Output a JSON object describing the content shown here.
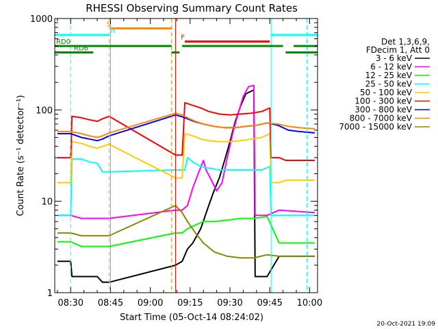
{
  "chart_data": {
    "type": "line",
    "title": "RHESSI Observing Summary Count Rates",
    "xlabel": "Start Time (05-Oct-14 08:24:02)",
    "ylabel": "Count Rate (s⁻¹ detector⁻¹)",
    "x_unit": "minutes since 08:24:02 UTC",
    "xlim": [
      0,
      99
    ],
    "ylim": [
      1,
      1000
    ],
    "yscale": "log",
    "x_ticks": [
      {
        "x": 6,
        "label": "08:30"
      },
      {
        "x": 21,
        "label": "08:45"
      },
      {
        "x": 36,
        "label": "09:00"
      },
      {
        "x": 51,
        "label": "09:15"
      },
      {
        "x": 66,
        "label": "09:30"
      },
      {
        "x": 81,
        "label": "09:45"
      },
      {
        "x": 96,
        "label": "10:00"
      }
    ],
    "y_ticks": [
      {
        "y": 1,
        "label": "1"
      },
      {
        "y": 10,
        "label": "10"
      },
      {
        "y": 100,
        "label": "100"
      },
      {
        "y": 1000,
        "label": "1000"
      }
    ],
    "legend_header": [
      "Det 1,3,6,9,",
      "FDecim 1, Att 0"
    ],
    "legend_position": "right",
    "footer": "20-Oct-2021 19:09",
    "gaps": [
      [
        21,
        45
      ],
      [
        81,
        84
      ]
    ],
    "series": [
      {
        "name": "3 - 6 keV",
        "color": "#000000",
        "points": [
          [
            1,
            2.2
          ],
          [
            6,
            2.2
          ],
          [
            6.5,
            1.5
          ],
          [
            10,
            1.5
          ],
          [
            16,
            1.5
          ],
          [
            18,
            1.3
          ],
          [
            20.5,
            1.3
          ],
          [
            45.5,
            2.0
          ],
          [
            48,
            2.2
          ],
          [
            50,
            3.0
          ],
          [
            52,
            3.5
          ],
          [
            55,
            5.0
          ],
          [
            58,
            9
          ],
          [
            60,
            13
          ],
          [
            62,
            18
          ],
          [
            64,
            28
          ],
          [
            66,
            45
          ],
          [
            68,
            75
          ],
          [
            70,
            110
          ],
          [
            72,
            150
          ],
          [
            74,
            160
          ],
          [
            75,
            165
          ],
          [
            75.5,
            1.5
          ],
          [
            80,
            1.5
          ],
          [
            84.5,
            2.5
          ],
          [
            87,
            2.5
          ],
          [
            98,
            2.5
          ]
        ]
      },
      {
        "name": "6 - 12 keV",
        "color": "#ff00ff",
        "points": [
          [
            1,
            7
          ],
          [
            6,
            7
          ],
          [
            10,
            6.5
          ],
          [
            16,
            6.5
          ],
          [
            20.5,
            6.5
          ],
          [
            45.5,
            8
          ],
          [
            48,
            8
          ],
          [
            50,
            9
          ],
          [
            52,
            14
          ],
          [
            54,
            20
          ],
          [
            56,
            28
          ],
          [
            57,
            22
          ],
          [
            59,
            17
          ],
          [
            61,
            13
          ],
          [
            63,
            16
          ],
          [
            65,
            30
          ],
          [
            67,
            55
          ],
          [
            69,
            90
          ],
          [
            71,
            140
          ],
          [
            73,
            180
          ],
          [
            75,
            185
          ],
          [
            75.5,
            7
          ],
          [
            80,
            7
          ],
          [
            84.5,
            8
          ],
          [
            98,
            7.5
          ]
        ]
      },
      {
        "name": "12 - 25 keV",
        "color": "#00ff00",
        "points": [
          [
            1,
            3.6
          ],
          [
            6,
            3.6
          ],
          [
            10,
            3.2
          ],
          [
            16,
            3.2
          ],
          [
            20.5,
            3.2
          ],
          [
            45.5,
            4.5
          ],
          [
            48,
            4.5
          ],
          [
            50,
            5
          ],
          [
            53,
            5.5
          ],
          [
            56,
            6
          ],
          [
            60,
            6
          ],
          [
            65,
            6.2
          ],
          [
            70,
            6.5
          ],
          [
            75,
            6.5
          ],
          [
            80,
            6.8
          ],
          [
            84.5,
            3.5
          ],
          [
            87,
            3.5
          ],
          [
            98,
            3.5
          ]
        ]
      },
      {
        "name": "25 - 50 keV",
        "color": "#00ffff",
        "points": [
          [
            1,
            7
          ],
          [
            6,
            7
          ],
          [
            6.5,
            29
          ],
          [
            10,
            29
          ],
          [
            13,
            27
          ],
          [
            16,
            26
          ],
          [
            18,
            21
          ],
          [
            20.5,
            21
          ],
          [
            45.5,
            22
          ],
          [
            48,
            22
          ],
          [
            49,
            22
          ],
          [
            50,
            30
          ],
          [
            52,
            27
          ],
          [
            55,
            24
          ],
          [
            58,
            23
          ],
          [
            62,
            22
          ],
          [
            66,
            22
          ],
          [
            70,
            22
          ],
          [
            74,
            22
          ],
          [
            78,
            22
          ],
          [
            81,
            24
          ],
          [
            81.5,
            7
          ],
          [
            84.5,
            7
          ],
          [
            87,
            7
          ],
          [
            98,
            7
          ]
        ]
      },
      {
        "name": "50 - 100 keV",
        "color": "#ffcc00",
        "points": [
          [
            1,
            16
          ],
          [
            6,
            16
          ],
          [
            6.5,
            45
          ],
          [
            10,
            43
          ],
          [
            13,
            40
          ],
          [
            16,
            38
          ],
          [
            18,
            40
          ],
          [
            20.5,
            42
          ],
          [
            45.5,
            18
          ],
          [
            48,
            18
          ],
          [
            49,
            55
          ],
          [
            52,
            52
          ],
          [
            55,
            48
          ],
          [
            58,
            46
          ],
          [
            62,
            45
          ],
          [
            66,
            45
          ],
          [
            70,
            46
          ],
          [
            74,
            48
          ],
          [
            78,
            50
          ],
          [
            81,
            55
          ],
          [
            81.5,
            16
          ],
          [
            84.5,
            16
          ],
          [
            87,
            17
          ],
          [
            98,
            17
          ]
        ]
      },
      {
        "name": "100 - 300 keV",
        "color": "#ff0000",
        "points": [
          [
            1,
            30
          ],
          [
            6,
            30
          ],
          [
            6.5,
            85
          ],
          [
            10,
            82
          ],
          [
            13,
            78
          ],
          [
            16,
            75
          ],
          [
            18,
            80
          ],
          [
            20.5,
            85
          ],
          [
            45.5,
            32
          ],
          [
            48,
            32
          ],
          [
            49,
            120
          ],
          [
            52,
            112
          ],
          [
            55,
            105
          ],
          [
            58,
            96
          ],
          [
            62,
            90
          ],
          [
            66,
            88
          ],
          [
            70,
            90
          ],
          [
            74,
            92
          ],
          [
            78,
            96
          ],
          [
            81,
            105
          ],
          [
            81.5,
            30
          ],
          [
            84.5,
            30
          ],
          [
            87,
            28
          ],
          [
            98,
            28
          ]
        ]
      },
      {
        "name": "300 - 800 keV",
        "color": "#0000ff",
        "points": [
          [
            1,
            55
          ],
          [
            6,
            55
          ],
          [
            10,
            50
          ],
          [
            13,
            48
          ],
          [
            16,
            46
          ],
          [
            18,
            48
          ],
          [
            20.5,
            52
          ],
          [
            45.5,
            88
          ],
          [
            48,
            84
          ],
          [
            50,
            80
          ],
          [
            53,
            74
          ],
          [
            56,
            70
          ],
          [
            60,
            66
          ],
          [
            64,
            64
          ],
          [
            68,
            64
          ],
          [
            72,
            66
          ],
          [
            76,
            68
          ],
          [
            80,
            72
          ],
          [
            84,
            68
          ],
          [
            88,
            60
          ],
          [
            92,
            58
          ],
          [
            98,
            56
          ]
        ]
      },
      {
        "name": "800 - 7000 keV",
        "color": "#ff8800",
        "points": [
          [
            1,
            58
          ],
          [
            6,
            58
          ],
          [
            10,
            55
          ],
          [
            13,
            52
          ],
          [
            16,
            50
          ],
          [
            18,
            52
          ],
          [
            20.5,
            56
          ],
          [
            45.5,
            92
          ],
          [
            48,
            88
          ],
          [
            50,
            82
          ],
          [
            53,
            75
          ],
          [
            56,
            70
          ],
          [
            60,
            66
          ],
          [
            64,
            64
          ],
          [
            68,
            64
          ],
          [
            72,
            66
          ],
          [
            76,
            68
          ],
          [
            80,
            72
          ],
          [
            84,
            70
          ],
          [
            88,
            66
          ],
          [
            92,
            64
          ],
          [
            98,
            62
          ]
        ]
      },
      {
        "name": "7000 - 15000 keV",
        "color": "#888800",
        "points": [
          [
            1,
            4.5
          ],
          [
            6,
            4.5
          ],
          [
            10,
            4.2
          ],
          [
            16,
            4.2
          ],
          [
            20.5,
            4.2
          ],
          [
            45.5,
            9
          ],
          [
            48,
            7.5
          ],
          [
            50,
            6
          ],
          [
            53,
            4.5
          ],
          [
            56,
            3.5
          ],
          [
            60,
            2.8
          ],
          [
            65,
            2.5
          ],
          [
            70,
            2.4
          ],
          [
            75,
            2.4
          ],
          [
            80,
            2.6
          ],
          [
            84.5,
            2.5
          ],
          [
            87,
            2.5
          ],
          [
            98,
            2.5
          ]
        ]
      }
    ],
    "vertical_markers": [
      {
        "x": 6,
        "color": "#00ffff",
        "style": "dashed"
      },
      {
        "x": 20.5,
        "color": "#00ffff",
        "style": "dashed"
      },
      {
        "x": 21,
        "color": "#ff8800",
        "style": "solid"
      },
      {
        "x": 44,
        "color": "#ff8800",
        "style": "dashed"
      },
      {
        "x": 45.5,
        "color": "#ff0000",
        "style": "solid"
      },
      {
        "x": 81.5,
        "color": "#00ffff",
        "style": "solid"
      },
      {
        "x": 95,
        "color": "#00ffff",
        "style": "dashed"
      }
    ],
    "status_bars": [
      {
        "label": "S",
        "color": "#ff8800",
        "label_color": "#ff8800",
        "y": 780,
        "segments": [
          [
            21,
            44
          ]
        ],
        "label_x": 19.5
      },
      {
        "label": "N",
        "color": "#00ffff",
        "label_color": "#00ffff",
        "y": 660,
        "segments": [
          [
            0,
            20.5
          ],
          [
            81.5,
            99
          ]
        ],
        "label_x": 21
      },
      {
        "label": "F",
        "color": "#ff0000",
        "label_color": "#ff0000",
        "y": 560,
        "segments": [
          [
            49,
            81
          ]
        ],
        "label_x": 47.5
      },
      {
        "label": "RD0",
        "color": "#008800",
        "label_color": "#008800",
        "y": 500,
        "segments": [
          [
            0,
            44
          ],
          [
            48,
            86
          ],
          [
            90,
            99
          ]
        ],
        "label_x": 0.5
      },
      {
        "label": "RD6",
        "color": "#008800",
        "label_color": "#008800",
        "y": 425,
        "segments": [
          [
            0,
            14.5
          ],
          [
            44,
            47
          ],
          [
            87,
            99
          ]
        ],
        "label_x": 7.2
      }
    ]
  }
}
